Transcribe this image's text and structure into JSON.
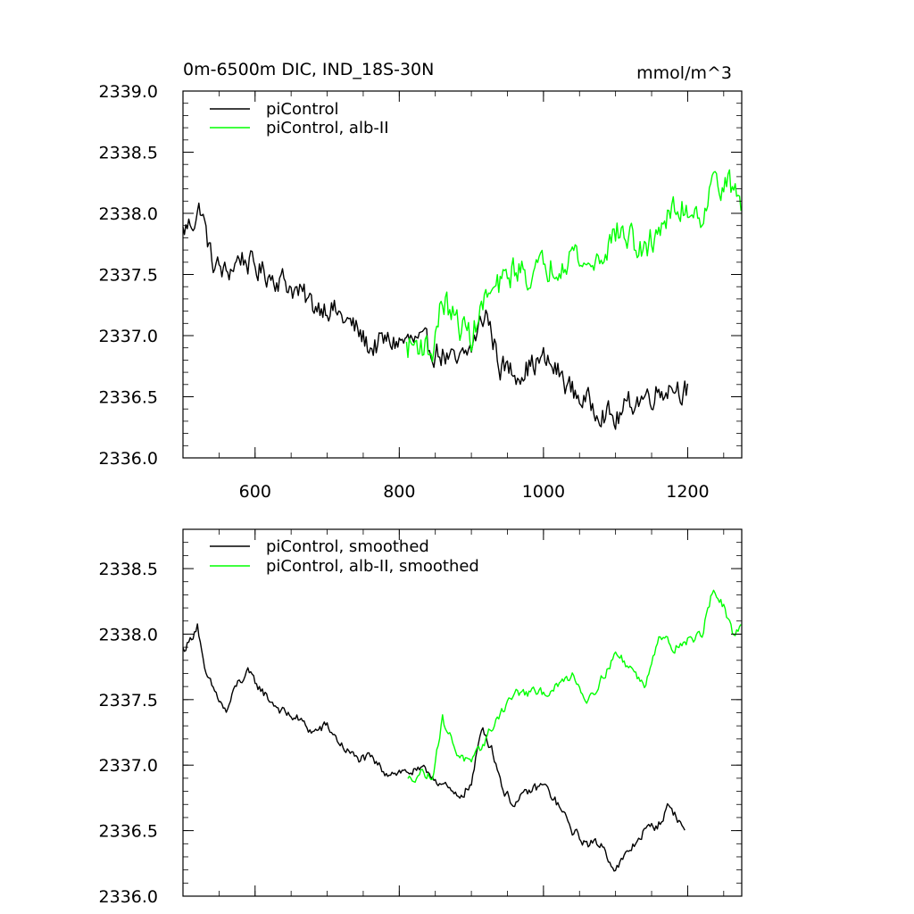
{
  "chart_data": [
    {
      "type": "line",
      "title": "0m-6500m DIC, IND_18S-30N",
      "units": "mmol/m^3",
      "xlim": [
        500,
        1275
      ],
      "ylim": [
        2336.0,
        2339.0
      ],
      "x_ticks": [
        600,
        800,
        1000,
        1200
      ],
      "x_tick_labels": [
        "600",
        "800",
        "1000",
        "1200"
      ],
      "y_ticks": [
        2336.0,
        2336.5,
        2337.0,
        2337.5,
        2338.0,
        2338.5,
        2339.0
      ],
      "y_tick_labels": [
        "2336.0",
        "2336.5",
        "2337.0",
        "2337.5",
        "2338.0",
        "2338.5",
        "2339.0"
      ],
      "legend_position": "top-left",
      "series": [
        {
          "name": "piControl",
          "color": "#000000",
          "x_range": [
            500,
            1200
          ],
          "noise": 0.17,
          "anchors": [
            [
              500,
              2337.85
            ],
            [
              515,
              2337.95
            ],
            [
              525,
              2338.05
            ],
            [
              540,
              2337.6
            ],
            [
              560,
              2337.5
            ],
            [
              580,
              2337.65
            ],
            [
              600,
              2337.55
            ],
            [
              620,
              2337.5
            ],
            [
              640,
              2337.45
            ],
            [
              660,
              2337.35
            ],
            [
              680,
              2337.25
            ],
            [
              700,
              2337.25
            ],
            [
              720,
              2337.15
            ],
            [
              740,
              2337.05
            ],
            [
              760,
              2336.9
            ],
            [
              780,
              2336.95
            ],
            [
              800,
              2336.95
            ],
            [
              820,
              2336.95
            ],
            [
              840,
              2336.9
            ],
            [
              860,
              2336.85
            ],
            [
              880,
              2336.75
            ],
            [
              900,
              2336.9
            ],
            [
              920,
              2337.2
            ],
            [
              940,
              2336.75
            ],
            [
              960,
              2336.7
            ],
            [
              980,
              2336.75
            ],
            [
              1000,
              2336.8
            ],
            [
              1020,
              2336.7
            ],
            [
              1040,
              2336.55
            ],
            [
              1060,
              2336.45
            ],
            [
              1080,
              2336.4
            ],
            [
              1100,
              2336.3
            ],
            [
              1120,
              2336.45
            ],
            [
              1140,
              2336.5
            ],
            [
              1160,
              2336.55
            ],
            [
              1180,
              2336.6
            ],
            [
              1200,
              2336.55
            ]
          ]
        },
        {
          "name": "piControl, alb-II",
          "color": "#00ff00",
          "x_range": [
            810,
            1275
          ],
          "noise": 0.2,
          "anchors": [
            [
              810,
              2336.9
            ],
            [
              830,
              2336.95
            ],
            [
              845,
              2336.85
            ],
            [
              860,
              2337.3
            ],
            [
              880,
              2337.1
            ],
            [
              900,
              2337.0
            ],
            [
              920,
              2337.3
            ],
            [
              940,
              2337.4
            ],
            [
              960,
              2337.55
            ],
            [
              980,
              2337.5
            ],
            [
              1000,
              2337.55
            ],
            [
              1020,
              2337.6
            ],
            [
              1040,
              2337.7
            ],
            [
              1060,
              2337.55
            ],
            [
              1080,
              2337.65
            ],
            [
              1100,
              2337.85
            ],
            [
              1120,
              2337.8
            ],
            [
              1140,
              2337.65
            ],
            [
              1160,
              2337.9
            ],
            [
              1180,
              2338.0
            ],
            [
              1200,
              2338.05
            ],
            [
              1220,
              2338.0
            ],
            [
              1240,
              2338.3
            ],
            [
              1260,
              2338.2
            ],
            [
              1275,
              2338.1
            ]
          ]
        }
      ]
    },
    {
      "type": "line",
      "title": "",
      "xlim": [
        500,
        1275
      ],
      "ylim": [
        2336.0,
        2338.8
      ],
      "x_ticks": [
        600,
        800,
        1000,
        1200
      ],
      "y_ticks": [
        2336.0,
        2336.5,
        2337.0,
        2337.5,
        2338.0,
        2338.5
      ],
      "y_tick_labels": [
        "2336.0",
        "2336.5",
        "2337.0",
        "2337.5",
        "2338.0",
        "2338.5"
      ],
      "legend_position": "top-left",
      "series": [
        {
          "name": "piControl, smoothed",
          "color": "#000000",
          "x_range": [
            500,
            1197
          ],
          "noise": 0.06,
          "anchors": [
            [
              500,
              2337.88
            ],
            [
              510,
              2337.95
            ],
            [
              520,
              2338.08
            ],
            [
              530,
              2337.7
            ],
            [
              545,
              2337.55
            ],
            [
              560,
              2337.4
            ],
            [
              575,
              2337.62
            ],
            [
              590,
              2337.7
            ],
            [
              605,
              2337.6
            ],
            [
              620,
              2337.5
            ],
            [
              640,
              2337.4
            ],
            [
              660,
              2337.35
            ],
            [
              680,
              2337.25
            ],
            [
              700,
              2337.3
            ],
            [
              720,
              2337.15
            ],
            [
              740,
              2337.05
            ],
            [
              760,
              2337.05
            ],
            [
              780,
              2336.95
            ],
            [
              800,
              2336.95
            ],
            [
              820,
              2336.95
            ],
            [
              840,
              2336.95
            ],
            [
              860,
              2336.85
            ],
            [
              880,
              2336.75
            ],
            [
              900,
              2336.85
            ],
            [
              915,
              2337.3
            ],
            [
              930,
              2337.1
            ],
            [
              945,
              2336.8
            ],
            [
              960,
              2336.7
            ],
            [
              980,
              2336.8
            ],
            [
              1000,
              2336.85
            ],
            [
              1020,
              2336.7
            ],
            [
              1040,
              2336.5
            ],
            [
              1060,
              2336.4
            ],
            [
              1080,
              2336.4
            ],
            [
              1100,
              2336.2
            ],
            [
              1120,
              2336.35
            ],
            [
              1140,
              2336.5
            ],
            [
              1160,
              2336.55
            ],
            [
              1175,
              2336.7
            ],
            [
              1190,
              2336.55
            ],
            [
              1197,
              2336.5
            ]
          ]
        },
        {
          "name": "piControl, alb-II, smoothed",
          "color": "#00ff00",
          "x_range": [
            812,
            1275
          ],
          "noise": 0.06,
          "anchors": [
            [
              812,
              2336.88
            ],
            [
              830,
              2336.95
            ],
            [
              845,
              2336.9
            ],
            [
              860,
              2337.35
            ],
            [
              880,
              2337.1
            ],
            [
              900,
              2337.0
            ],
            [
              920,
              2337.2
            ],
            [
              940,
              2337.4
            ],
            [
              960,
              2337.55
            ],
            [
              980,
              2337.55
            ],
            [
              1000,
              2337.55
            ],
            [
              1020,
              2337.6
            ],
            [
              1040,
              2337.7
            ],
            [
              1060,
              2337.5
            ],
            [
              1080,
              2337.65
            ],
            [
              1100,
              2337.85
            ],
            [
              1120,
              2337.75
            ],
            [
              1140,
              2337.6
            ],
            [
              1160,
              2338.0
            ],
            [
              1180,
              2337.9
            ],
            [
              1200,
              2337.95
            ],
            [
              1220,
              2338.0
            ],
            [
              1235,
              2338.35
            ],
            [
              1250,
              2338.2
            ],
            [
              1265,
              2337.95
            ],
            [
              1275,
              2338.1
            ]
          ]
        }
      ]
    }
  ]
}
